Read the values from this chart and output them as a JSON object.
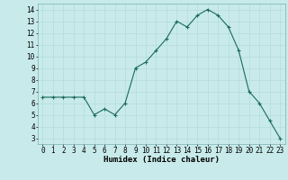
{
  "x": [
    0,
    1,
    2,
    3,
    4,
    5,
    6,
    7,
    8,
    9,
    10,
    11,
    12,
    13,
    14,
    15,
    16,
    17,
    18,
    19,
    20,
    21,
    22,
    23
  ],
  "y": [
    6.5,
    6.5,
    6.5,
    6.5,
    6.5,
    5.0,
    5.5,
    5.0,
    6.0,
    9.0,
    9.5,
    10.5,
    11.5,
    13.0,
    12.5,
    13.5,
    14.0,
    13.5,
    12.5,
    10.5,
    7.0,
    6.0,
    4.5,
    3.0
  ],
  "xlim": [
    -0.5,
    23.5
  ],
  "ylim": [
    2.5,
    14.5
  ],
  "yticks": [
    3,
    4,
    5,
    6,
    7,
    8,
    9,
    10,
    11,
    12,
    13,
    14
  ],
  "xticks": [
    0,
    1,
    2,
    3,
    4,
    5,
    6,
    7,
    8,
    9,
    10,
    11,
    12,
    13,
    14,
    15,
    16,
    17,
    18,
    19,
    20,
    21,
    22,
    23
  ],
  "xlabel": "Humidex (Indice chaleur)",
  "line_color": "#1a6b5a",
  "marker_color": "#1a6b5a",
  "bg_color": "#c8eaea",
  "grid_color": "#b0d8d8",
  "axes_bg": "#c8eaea",
  "tick_fontsize": 5.5,
  "label_fontsize": 6.5
}
